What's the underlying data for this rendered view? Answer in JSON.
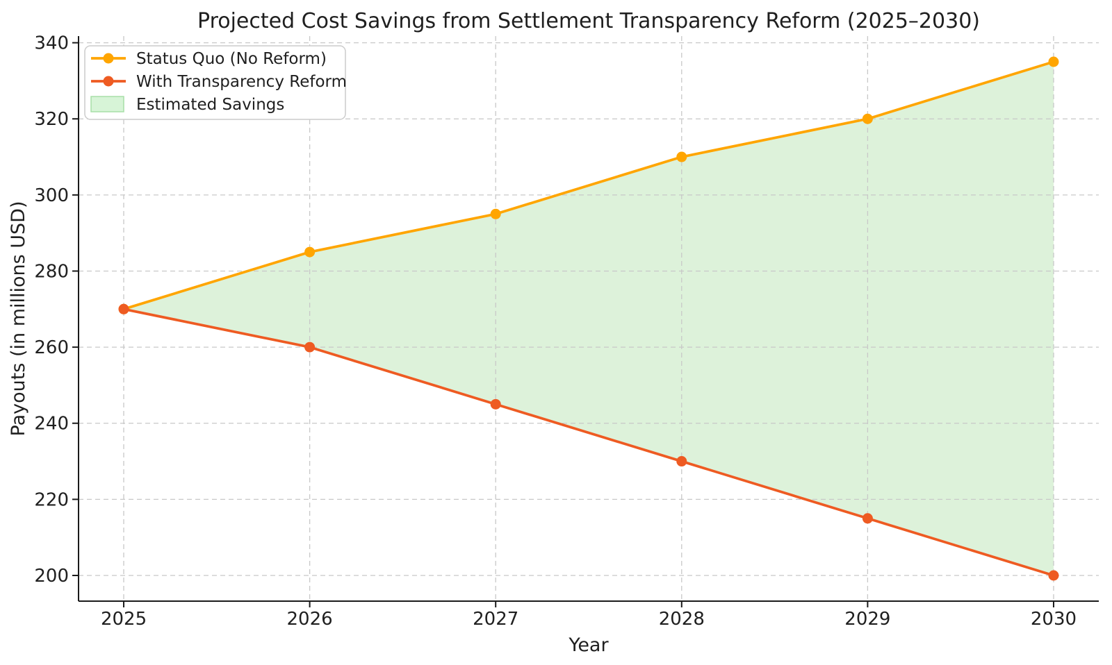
{
  "chart_data": {
    "type": "line",
    "title": "Projected Cost Savings from Settlement Transparency Reform (2025–2030)",
    "xlabel": "Year",
    "ylabel": "Payouts (in millions USD)",
    "x": [
      2025,
      2026,
      2027,
      2028,
      2029,
      2030
    ],
    "series": [
      {
        "name": "Status Quo (No Reform)",
        "values": [
          270,
          285,
          295,
          310,
          320,
          335
        ],
        "color": "#FFA500",
        "marker": "circle"
      },
      {
        "name": "With Transparency Reform",
        "values": [
          270,
          260,
          245,
          230,
          215,
          200
        ],
        "color": "#EE5B22",
        "marker": "circle"
      }
    ],
    "fill_between": {
      "label": "Estimated Savings",
      "fill_color": "#DDF2DA",
      "swatch_fill": "#D7F4D7",
      "swatch_border": "#A7DFA7"
    },
    "yticks": [
      200,
      220,
      240,
      260,
      280,
      300,
      320,
      340
    ],
    "xlim": [
      2024.757,
      2030.243
    ],
    "ylim": [
      193.25,
      341.75
    ],
    "grid": "dashed",
    "legend_position": "upper-left",
    "colors": {
      "grid": "#C8C8C8",
      "spine": "#1A1A1A",
      "legend_border": "#CCCCCC",
      "legend_bg": "#FFFFFF"
    }
  }
}
